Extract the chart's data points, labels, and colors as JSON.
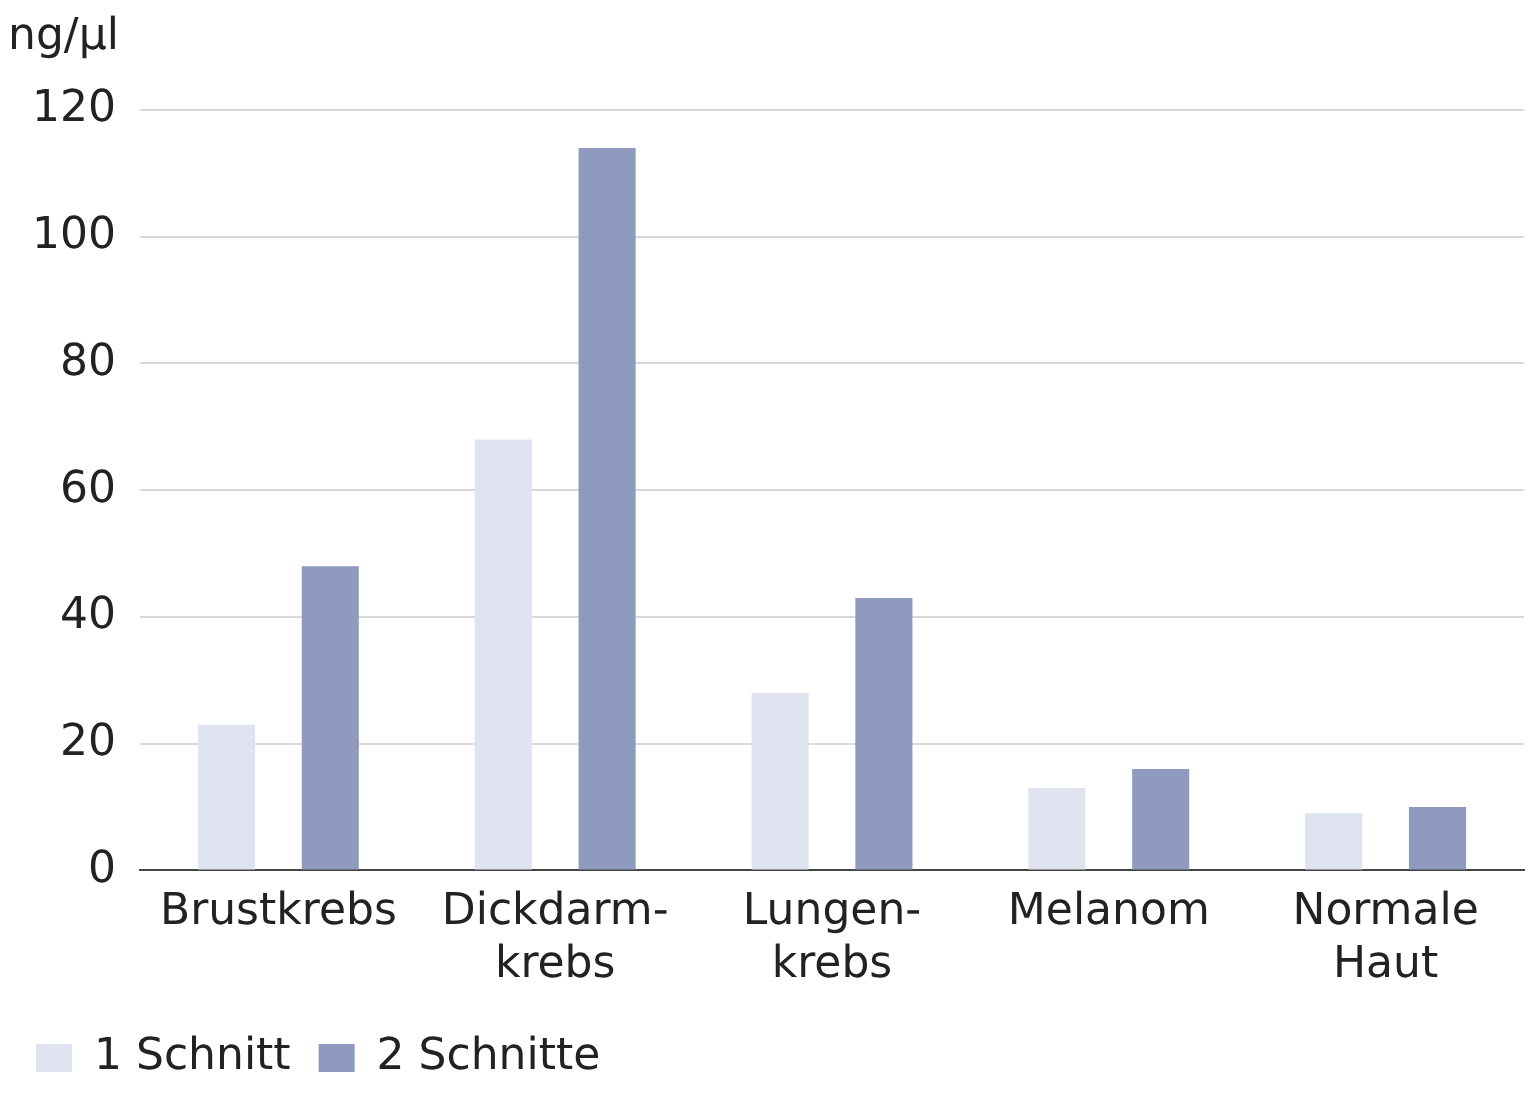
{
  "chart_data": {
    "type": "bar",
    "ylabel": "ng/µl",
    "categories": [
      "Brustkrebs",
      "Dickdarm-\nkrebs",
      "Lungen-\nkrebs",
      "Melanom",
      "Normale\nHaut"
    ],
    "series": [
      {
        "name": "1 Schnitt",
        "color": "#dfe3ef",
        "values": [
          23,
          68,
          28,
          13,
          9
        ]
      },
      {
        "name": "2 Schnitte",
        "color": "#8e9bbf",
        "values": [
          48,
          114,
          43,
          16,
          10
        ]
      }
    ],
    "ylim": [
      0,
      120
    ],
    "yticks": [
      0,
      20,
      40,
      60,
      80,
      100,
      120
    ],
    "grid": "y",
    "legend": "bottom left"
  }
}
